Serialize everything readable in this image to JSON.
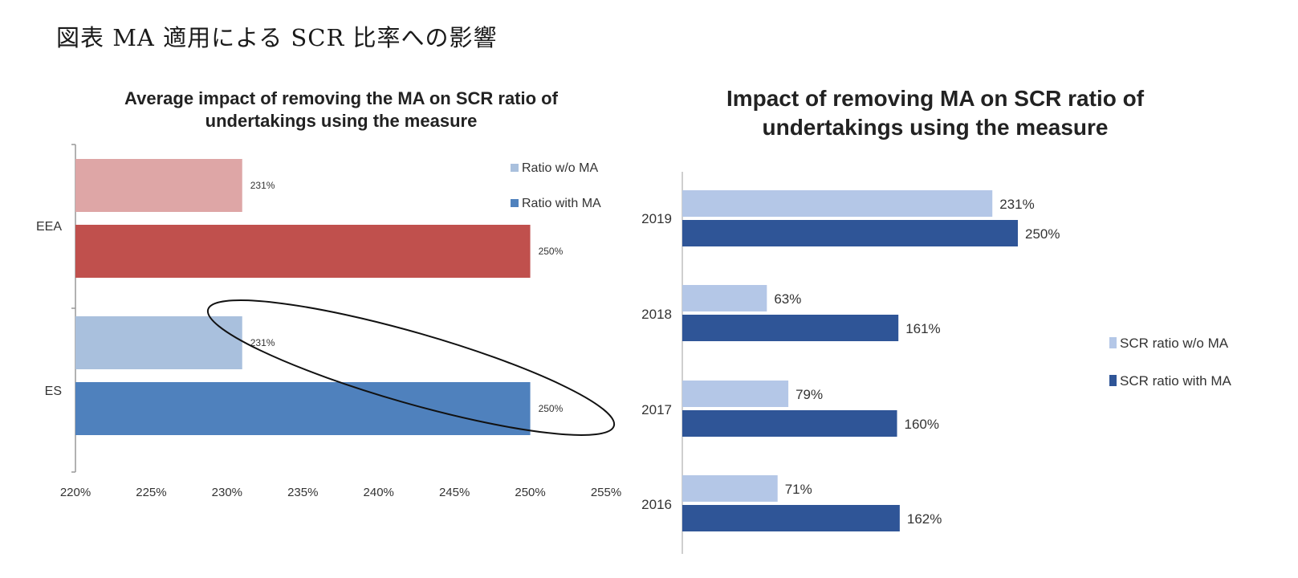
{
  "page": {
    "title": "図表  MA 適用による SCR 比率への影響"
  },
  "chart_data": [
    {
      "type": "bar",
      "orientation": "horizontal",
      "title": "Average impact of removing the MA on SCR ratio of undertakings using the measure",
      "title_lines": [
        "Average impact of removing the MA on SCR ratio of",
        "undertakings using the measure"
      ],
      "categories": [
        "EEA",
        "ES"
      ],
      "series": [
        {
          "name": "Ratio w/o MA",
          "values": [
            231,
            231
          ],
          "labels": [
            "231%",
            "231%"
          ],
          "colors": [
            "#dea6a6",
            "#a9c0dd"
          ]
        },
        {
          "name": "Ratio with MA",
          "values": [
            250,
            250
          ],
          "labels": [
            "250%",
            "250%"
          ],
          "colors": [
            "#c0504d",
            "#4f81bd"
          ]
        }
      ],
      "legend_colors": [
        "#a9c0dd",
        "#4f81bd"
      ],
      "xlim": [
        220,
        255
      ],
      "xticks": [
        "220%",
        "225%",
        "230%",
        "235%",
        "240%",
        "245%",
        "250%",
        "255%"
      ],
      "legend": "top-right",
      "grid": false,
      "annotation": "ellipse around ES bars"
    },
    {
      "type": "bar",
      "orientation": "horizontal",
      "title": "Impact of removing MA on SCR ratio of undertakings using the measure",
      "title_lines": [
        "Impact of removing MA on SCR ratio of",
        "undertakings using the measure"
      ],
      "categories": [
        "2019",
        "2018",
        "2017",
        "2016"
      ],
      "series": [
        {
          "name": "SCR ratio w/o MA",
          "values": [
            231,
            63,
            79,
            71
          ],
          "labels": [
            "231%",
            "63%",
            "79%",
            "71%"
          ],
          "color": "#b4c7e7"
        },
        {
          "name": "SCR ratio with MA",
          "values": [
            250,
            161,
            160,
            162
          ],
          "labels": [
            "250%",
            "161%",
            "160%",
            "162%"
          ],
          "color": "#2f5597"
        }
      ],
      "xlim": [
        0,
        250
      ],
      "legend": "right",
      "grid": false
    }
  ]
}
